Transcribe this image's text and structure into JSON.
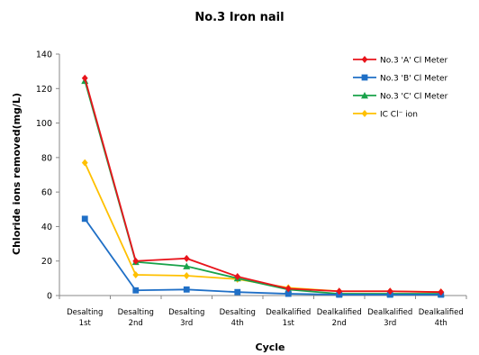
{
  "chart_data": {
    "type": "line",
    "title": "No.3  Iron nail",
    "xlabel": "Cycle",
    "ylabel": "Chloride  ions  removed(mg/L)",
    "ylim": [
      0,
      140
    ],
    "yticks": [
      0,
      20,
      40,
      60,
      80,
      100,
      120,
      140
    ],
    "categories": [
      [
        "Desalting",
        "1st"
      ],
      [
        "Desalting",
        "2nd"
      ],
      [
        "Desalting",
        "3rd"
      ],
      [
        "Desalting",
        "4th"
      ],
      [
        "Dealkalified",
        "1st"
      ],
      [
        "Dealkalified",
        "2nd"
      ],
      [
        "Dealkalified",
        "3rd"
      ],
      [
        "Dealkalified",
        "4th"
      ]
    ],
    "legend_position": "top-right",
    "grid": false,
    "series": [
      {
        "name": "No.3 'A' Cl Meter",
        "color": "#e8141b",
        "marker": "diamond",
        "values": [
          126,
          20,
          21.5,
          11,
          4,
          2.5,
          2.5,
          2
        ]
      },
      {
        "name": "No.3 'B' Cl Meter",
        "color": "#1f6fc6",
        "marker": "square",
        "values": [
          44.5,
          3,
          3.5,
          2,
          1,
          0.5,
          0.5,
          0.5
        ]
      },
      {
        "name": "No.3 'C' Cl Meter",
        "color": "#19a24a",
        "marker": "triangle",
        "values": [
          124.5,
          19.5,
          17,
          10,
          3.5,
          1,
          1,
          1
        ]
      },
      {
        "name": "IC Cl⁻ ion",
        "color": "#ffc000",
        "marker": "diamond",
        "values": [
          77,
          12,
          11.5,
          9.5,
          4.5,
          2.5,
          2.5,
          2
        ]
      }
    ]
  }
}
